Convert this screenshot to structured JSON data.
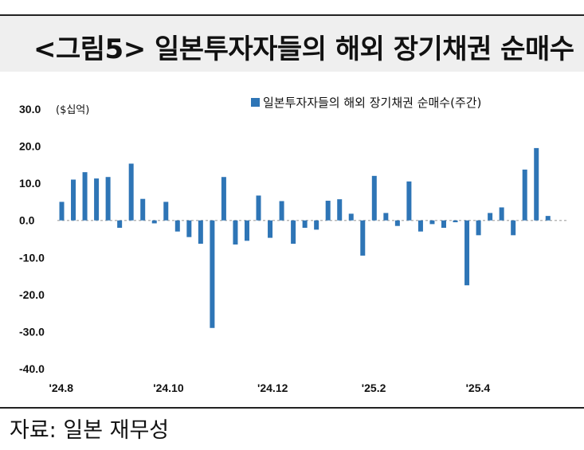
{
  "header": {
    "title": "<그림5> 일본투자자들의 해외 장기채권 순매수"
  },
  "source": {
    "text": "자료: 일본 재무성"
  },
  "chart_data": {
    "type": "bar",
    "unit_label": "($십억)",
    "legend": "일본투자자들의 해외 장기채권 순매수(주간)",
    "legend_position": "top-right",
    "color": "#2e75b6",
    "ylim": [
      -40,
      30
    ],
    "yticks": [
      "30.0",
      "20.0",
      "10.0",
      "0.0",
      "-10.0",
      "-20.0",
      "-30.0",
      "-40.0"
    ],
    "ytick_values": [
      30,
      20,
      10,
      0,
      -10,
      -20,
      -30,
      -40
    ],
    "xtick_labels": [
      {
        "label": "'24.8",
        "index": 0
      },
      {
        "label": "'24.10",
        "index": 9
      },
      {
        "label": "'24.12",
        "index": 18
      },
      {
        "label": "'25.2",
        "index": 27
      },
      {
        "label": "'25.4",
        "index": 36
      }
    ],
    "grid": false,
    "values": [
      5.0,
      11.0,
      13.0,
      11.3,
      11.7,
      -2.0,
      15.3,
      5.8,
      -0.8,
      5.0,
      -3.0,
      -4.5,
      -6.3,
      -29.0,
      11.7,
      -6.5,
      -5.5,
      6.7,
      -4.7,
      5.2,
      -6.3,
      -2.0,
      -2.5,
      5.3,
      5.7,
      1.8,
      -9.5,
      12.0,
      2.0,
      -1.5,
      10.5,
      -3.0,
      -1.0,
      -2.0,
      -0.5,
      -17.5,
      -4.0,
      2.0,
      3.5,
      -4.0,
      13.7,
      19.5,
      1.2
    ]
  }
}
